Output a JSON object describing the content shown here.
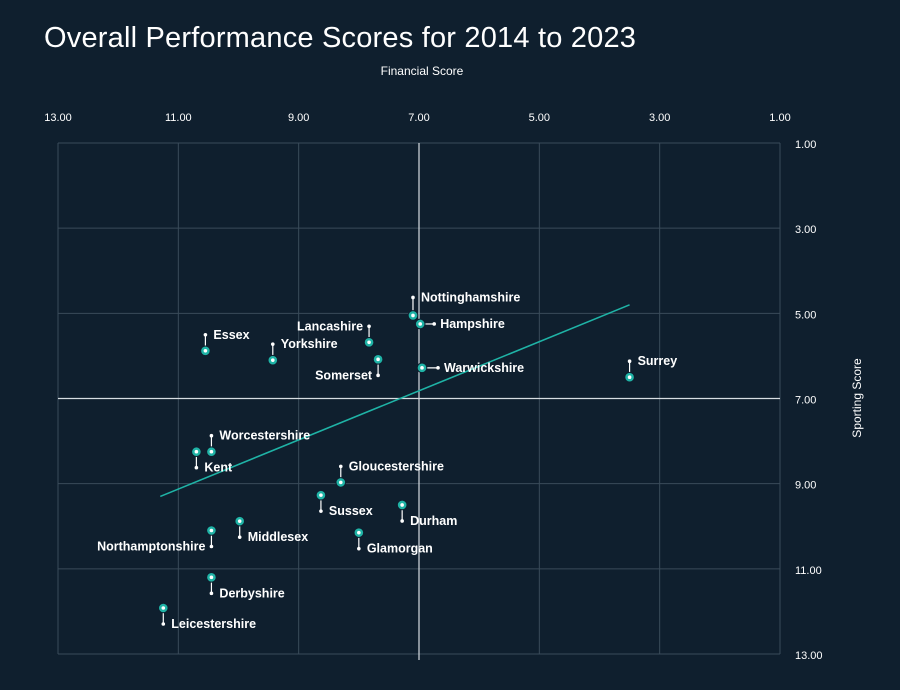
{
  "chart_data": {
    "type": "scatter",
    "title": "Overall Performance Scores for 2014 to 2023",
    "xlabel": "Financial Score",
    "ylabel": "Sporting Score",
    "xlim": [
      13,
      1
    ],
    "ylim": [
      13,
      1
    ],
    "x_ticks": [
      "13.00",
      "11.00",
      "9.00",
      "7.00",
      "5.00",
      "3.00",
      "1.00"
    ],
    "y_ticks": [
      "1.00",
      "3.00",
      "5.00",
      "7.00",
      "9.00",
      "11.00",
      "13.00"
    ],
    "reference_lines": {
      "x": 7,
      "y": 7
    },
    "trend_line": {
      "x": [
        11.3,
        3.5
      ],
      "y": [
        9.3,
        4.8
      ]
    },
    "colors": {
      "background": "#0f1f2e",
      "grid": "#3a4b5a",
      "accent": "#1fb3a6",
      "text": "#ffffff"
    },
    "points": [
      {
        "name": "Nottinghamshire",
        "x": 7.1,
        "y": 5.05,
        "label_side": "right"
      },
      {
        "name": "Hampshire",
        "x": 6.98,
        "y": 5.25,
        "label_side": "right"
      },
      {
        "name": "Lancashire",
        "x": 7.83,
        "y": 5.68,
        "label_side": "left"
      },
      {
        "name": "Essex",
        "x": 10.55,
        "y": 5.88,
        "label_side": "right"
      },
      {
        "name": "Yorkshire",
        "x": 9.43,
        "y": 6.1,
        "label_side": "right"
      },
      {
        "name": "Somerset",
        "x": 7.68,
        "y": 6.08,
        "label_side": "left"
      },
      {
        "name": "Warwickshire",
        "x": 6.95,
        "y": 6.28,
        "label_side": "right"
      },
      {
        "name": "Surrey",
        "x": 3.5,
        "y": 6.5,
        "label_side": "right"
      },
      {
        "name": "Worcestershire",
        "x": 10.45,
        "y": 8.25,
        "label_side": "right"
      },
      {
        "name": "Kent",
        "x": 10.7,
        "y": 8.25,
        "label_side": "right"
      },
      {
        "name": "Gloucestershire",
        "x": 8.3,
        "y": 8.97,
        "label_side": "right"
      },
      {
        "name": "Sussex",
        "x": 8.63,
        "y": 9.27,
        "label_side": "right"
      },
      {
        "name": "Durham",
        "x": 7.28,
        "y": 9.5,
        "label_side": "right"
      },
      {
        "name": "Middlesex",
        "x": 9.98,
        "y": 9.88,
        "label_side": "right"
      },
      {
        "name": "Northamptonshire",
        "x": 10.45,
        "y": 10.1,
        "label_side": "left"
      },
      {
        "name": "Glamorgan",
        "x": 8.0,
        "y": 10.15,
        "label_side": "right"
      },
      {
        "name": "Derbyshire",
        "x": 10.45,
        "y": 11.2,
        "label_side": "right"
      },
      {
        "name": "Leicestershire",
        "x": 11.25,
        "y": 11.92,
        "label_side": "right"
      }
    ]
  }
}
